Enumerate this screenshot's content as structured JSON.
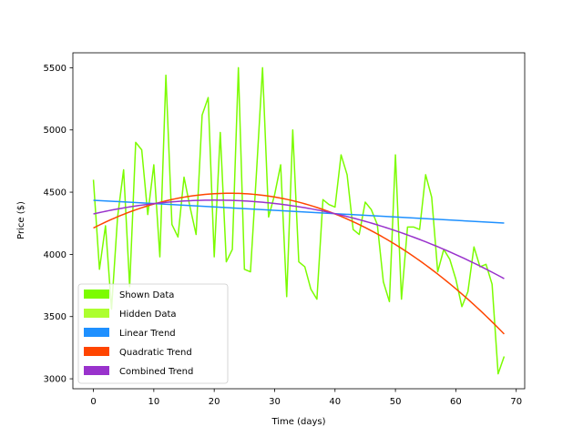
{
  "chart_data": {
    "type": "line",
    "title": "",
    "xlabel": "Time (days)",
    "ylabel": "Price ($)",
    "xlim": [
      -3.4,
      71.4
    ],
    "ylim": [
      2920,
      5620
    ],
    "xticks": [
      0,
      10,
      20,
      30,
      40,
      50,
      60,
      70
    ],
    "yticks": [
      3000,
      3500,
      4000,
      4500,
      5000,
      5500
    ],
    "grid": false,
    "legend_position": "lower-left",
    "x": [
      0,
      1,
      2,
      3,
      4,
      5,
      6,
      7,
      8,
      9,
      10,
      11,
      12,
      13,
      14,
      15,
      16,
      17,
      18,
      19,
      20,
      21,
      22,
      23,
      24,
      25,
      26,
      27,
      28,
      29,
      30,
      31,
      32,
      33,
      34,
      35,
      36,
      37,
      38,
      39,
      40,
      41,
      42,
      43,
      44,
      45,
      46,
      47,
      48,
      49,
      50,
      51,
      52,
      53,
      54,
      55,
      56,
      57,
      58,
      59,
      60,
      61,
      62,
      63,
      64,
      65,
      66,
      67,
      68
    ],
    "series": [
      {
        "name": "Shown Data",
        "color": "#7cfc00",
        "kind": "line",
        "values": [
          4600,
          3880,
          4230,
          3560,
          4300,
          4680,
          3740,
          4900,
          4840,
          4320,
          4720,
          3980,
          5440,
          4240,
          4140,
          4620,
          4380,
          4160,
          5120,
          5260,
          3980,
          4980,
          3940,
          4040,
          5500,
          3880,
          3860,
          4660,
          5500,
          4300,
          4480,
          4720,
          3660,
          5000,
          3940,
          3900,
          3720,
          3640,
          4440,
          4400,
          4380,
          4800,
          4640,
          4200,
          4160,
          4420,
          4360,
          4240,
          3780,
          3620,
          4800,
          3640,
          4220,
          4220,
          4200,
          4640,
          4460,
          3860,
          4040,
          3960,
          3800,
          3580,
          3700,
          4060,
          3900,
          3920,
          3760,
          3040,
          3180
        ]
      },
      {
        "name": "Hidden Data",
        "color": "#adff2f",
        "kind": "legend-only"
      },
      {
        "name": "Linear Trend",
        "color": "#1e90ff",
        "kind": "line",
        "fit": "linear",
        "values_at_endpoints": {
          "x": [
            0,
            68
          ],
          "y": [
            4435,
            4252
          ]
        }
      },
      {
        "name": "Quadratic Trend",
        "color": "#ff4500",
        "kind": "line",
        "fit": "quadratic",
        "values_at": {
          "x": [
            0,
            24,
            68
          ],
          "y": [
            4212,
            4490,
            3360
          ]
        }
      },
      {
        "name": "Combined Trend",
        "color": "#9932cc",
        "kind": "line",
        "fit": "quadratic",
        "values_at": {
          "x": [
            0,
            22,
            68
          ],
          "y": [
            4325,
            4435,
            3805
          ]
        }
      }
    ]
  }
}
